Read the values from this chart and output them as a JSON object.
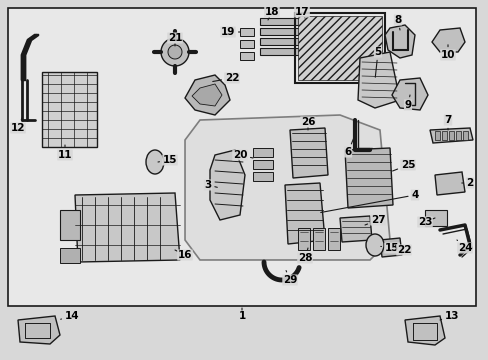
{
  "bg": "#d8d8d8",
  "box_bg": "#e8e8e8",
  "lc": "#1a1a1a",
  "fig_w": 4.89,
  "fig_h": 3.6,
  "dpi": 100,
  "font_size": 7.5
}
